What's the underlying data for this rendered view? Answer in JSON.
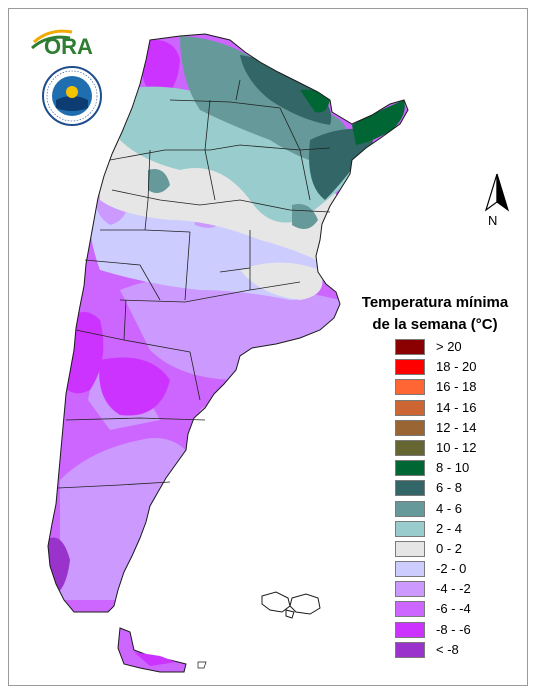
{
  "logo_text": "ORA",
  "seal_text": "SERVICIO METEOROLOGICO NACIONAL · ARGENTINA",
  "north_label": "N",
  "legend": {
    "title_line1": "Temperatura mínima",
    "title_line2": "de la semana (°C)",
    "items": [
      {
        "label": "> 20",
        "color": "#8b0000"
      },
      {
        "label": "18 - 20",
        "color": "#ff0000"
      },
      {
        "label": "16 - 18",
        "color": "#ff6633"
      },
      {
        "label": "14 - 16",
        "color": "#cc6633"
      },
      {
        "label": "12 - 14",
        "color": "#996633"
      },
      {
        "label": "10 - 12",
        "color": "#666633"
      },
      {
        "label": "8 - 10",
        "color": "#006633"
      },
      {
        "label": "6 - 8",
        "color": "#336666"
      },
      {
        "label": "4 - 6",
        "color": "#669999"
      },
      {
        "label": "2 - 4",
        "color": "#99cccc"
      },
      {
        "label": "0 - 2",
        "color": "#e6e6e6"
      },
      {
        "label": "-2 - 0",
        "color": "#ccccff"
      },
      {
        "label": "-4 - -2",
        "color": "#cc99ff"
      },
      {
        "label": "-6 - -4",
        "color": "#cc66ff"
      },
      {
        "label": "-8 - -6",
        "color": "#cc33ff"
      },
      {
        "label": "< -8",
        "color": "#9933cc"
      }
    ]
  }
}
